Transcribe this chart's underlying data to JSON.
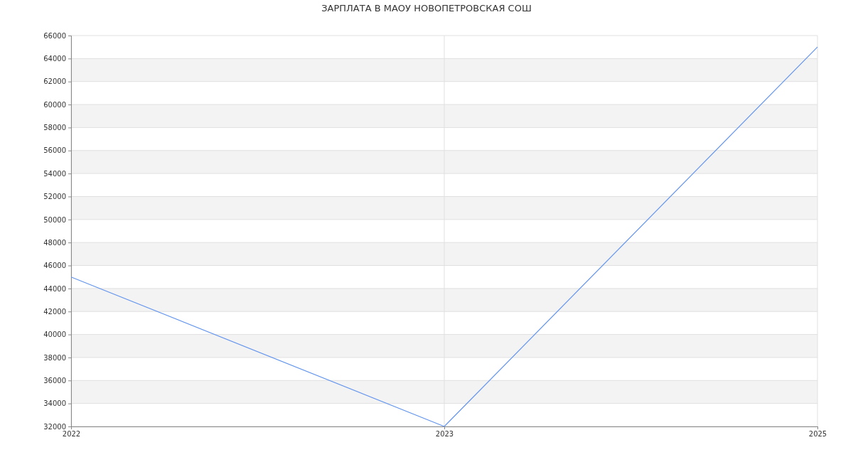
{
  "chart_data": {
    "type": "line",
    "title": "ЗАРПЛАТА В МАОУ НОВОПЕТРОВСКАЯ СОШ",
    "categories": [
      "2022",
      "2023",
      "2025"
    ],
    "series": [
      {
        "color": "#6495ed",
        "values": [
          45000,
          32000,
          65000
        ]
      }
    ],
    "ylim": [
      32000,
      66000
    ],
    "yticks": [
      32000,
      34000,
      36000,
      38000,
      40000,
      42000,
      44000,
      46000,
      48000,
      50000,
      52000,
      54000,
      56000,
      58000,
      60000,
      62000,
      64000,
      66000
    ],
    "grid": true,
    "marker": "none",
    "line_style": "solid"
  }
}
